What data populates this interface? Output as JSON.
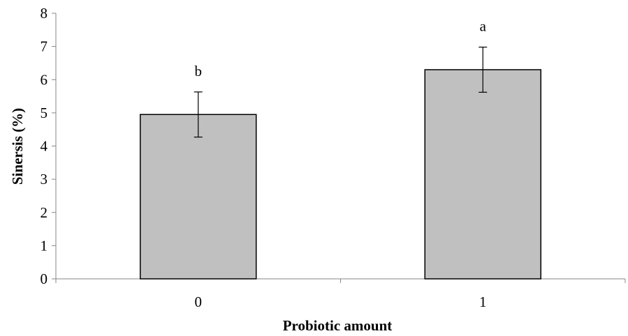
{
  "chart_data": {
    "type": "bar",
    "categories": [
      "0",
      "1"
    ],
    "values": [
      4.95,
      6.3
    ],
    "error": [
      0.68,
      0.68
    ],
    "significance": [
      "b",
      "a"
    ],
    "title": "",
    "xlabel": "Probiotic amount",
    "ylabel": "Sinersis (%)",
    "ylim": [
      0,
      8
    ],
    "yticks": [
      "0",
      "1",
      "2",
      "3",
      "4",
      "5",
      "6",
      "7",
      "8"
    ],
    "grid": false,
    "legend": "none",
    "colors": {
      "bar_fill": "#c0c0c0",
      "bar_stroke": "#000000",
      "axis": "#868686",
      "text": "#000000"
    }
  }
}
